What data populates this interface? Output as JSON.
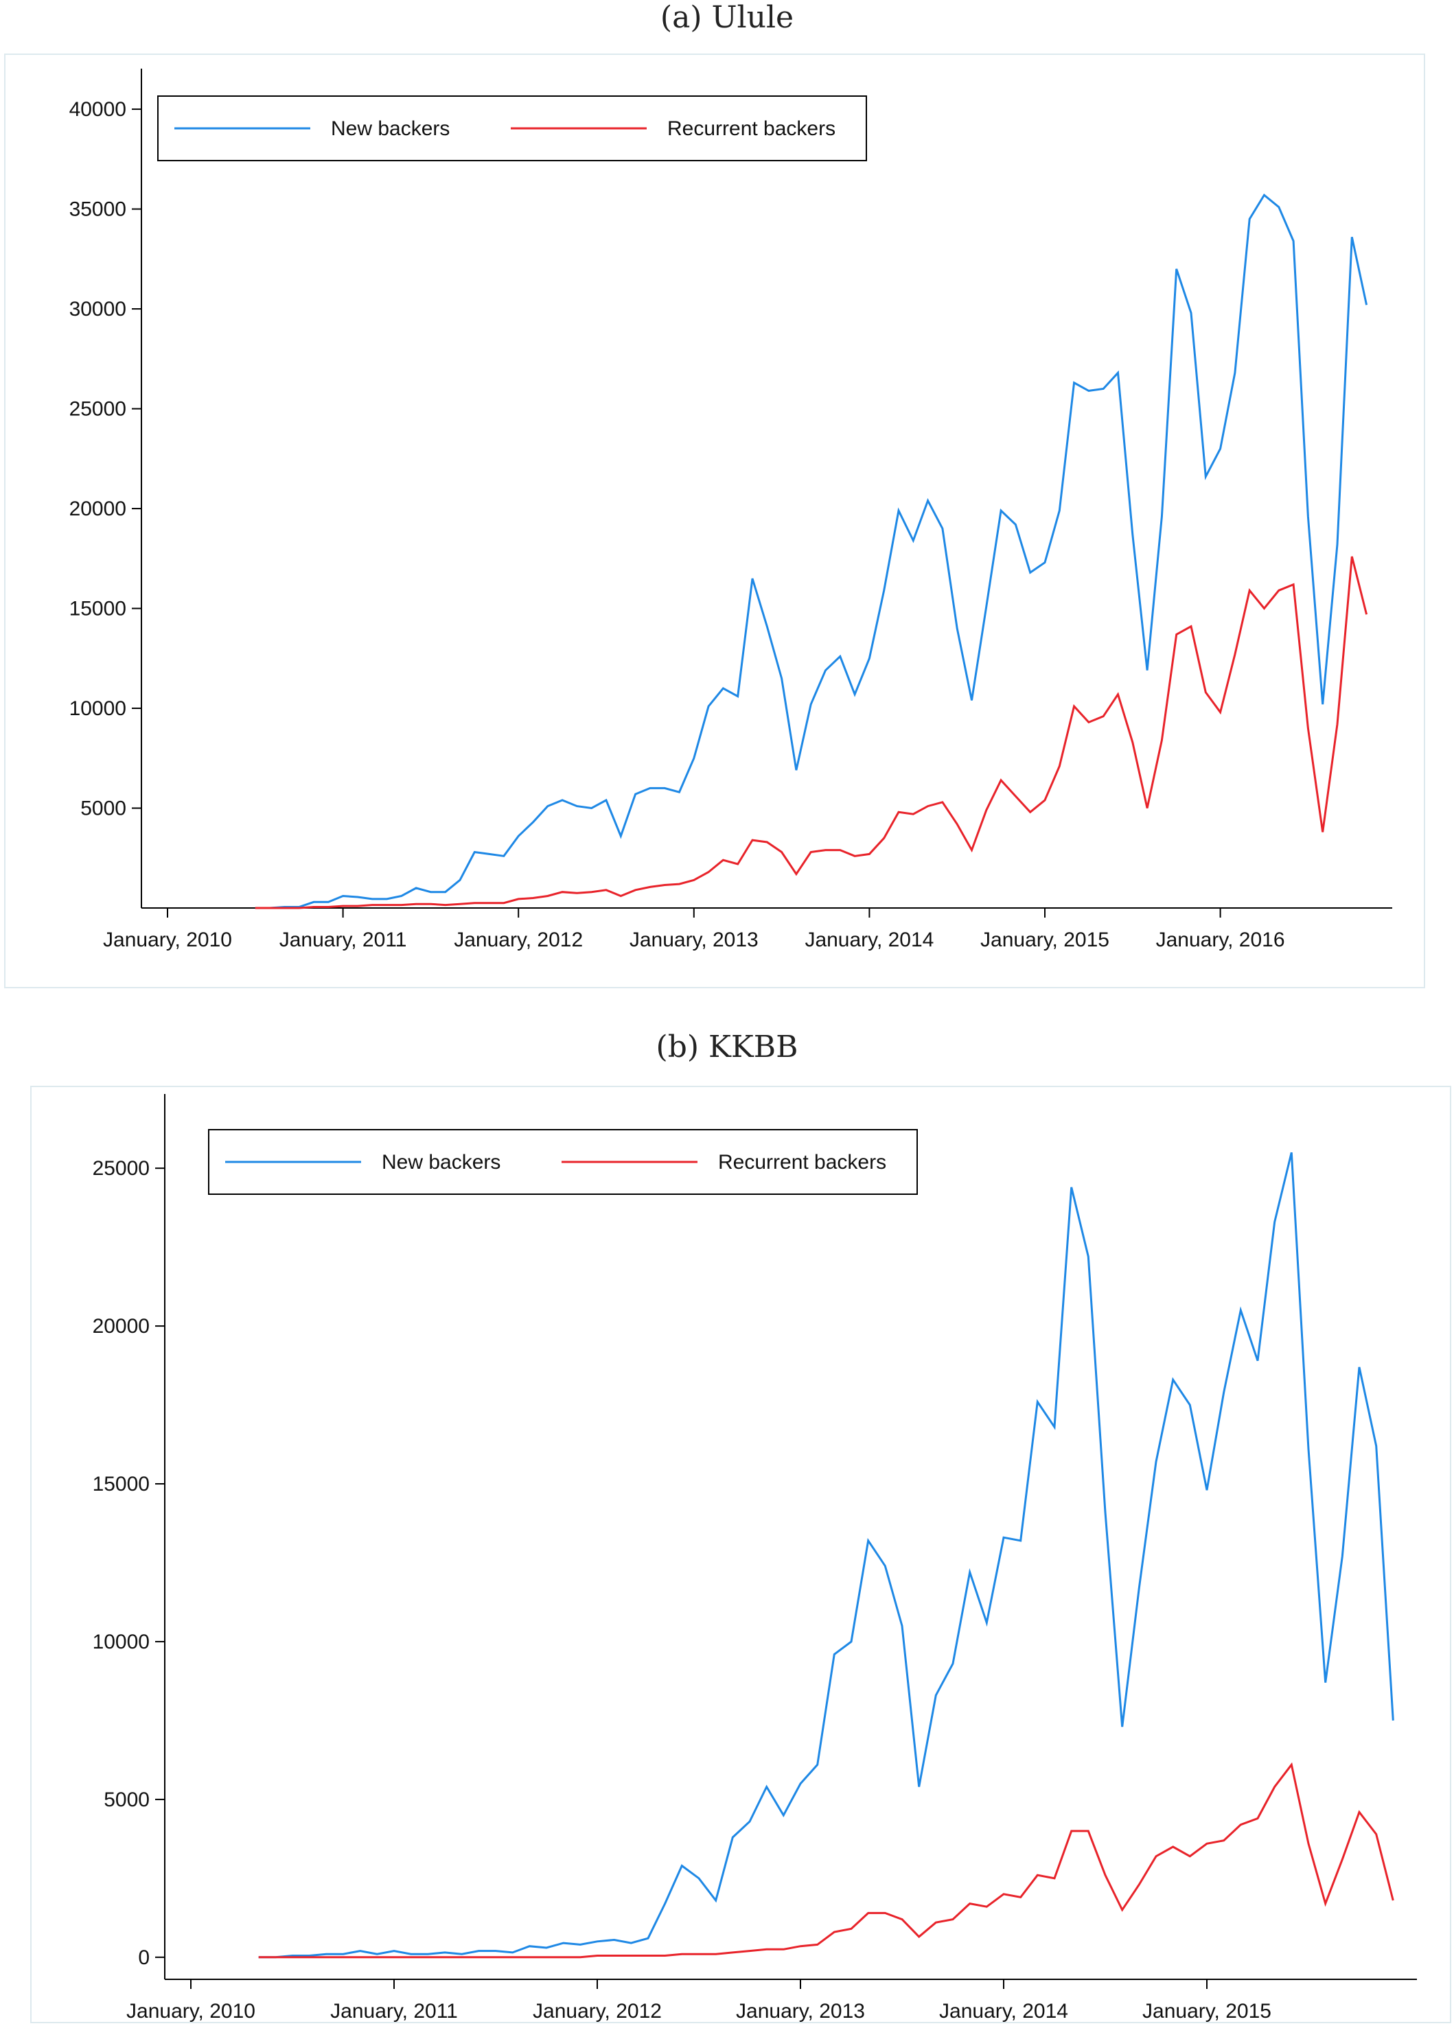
{
  "panels": [
    {
      "title": "(a) Ulule",
      "chart_data": {
        "type": "line",
        "title": "(a) Ulule",
        "xlabel": "",
        "ylabel": "",
        "x_start": "2010-07",
        "x_ticks": [
          "January, 2010",
          "January, 2011",
          "January, 2012",
          "January, 2013",
          "January, 2014",
          "January, 2015",
          "January, 2016"
        ],
        "y_ticks": [
          5000,
          10000,
          15000,
          20000,
          25000,
          30000,
          35000,
          40000
        ],
        "ylim": [
          0,
          41000
        ],
        "grid": false,
        "legend_position": "top-left",
        "series": [
          {
            "name": "New backers",
            "color": "#1e88e5",
            "values": [
              0,
              0,
              50,
              50,
              300,
              300,
              600,
              550,
              450,
              450,
              600,
              1000,
              800,
              800,
              1400,
              2800,
              2700,
              2600,
              3600,
              4300,
              5100,
              5400,
              5100,
              5000,
              5400,
              3600,
              5700,
              6000,
              6000,
              5800,
              7500,
              10100,
              11000,
              10600,
              16500,
              14100,
              11500,
              6900,
              10200,
              11900,
              12600,
              10700,
              12500,
              15900,
              19900,
              18400,
              20400,
              19000,
              14000,
              10400,
              15100,
              19900,
              19200,
              16800,
              17300,
              19900,
              26300,
              25900,
              26000,
              26800,
              18700,
              11900,
              19600,
              32000,
              29800,
              21600,
              23000,
              26800,
              34500,
              35700,
              35100,
              33400,
              19600,
              10200,
              18200,
              33600,
              30200
            ]
          },
          {
            "name": "Recurrent backers",
            "color": "#e8232a",
            "values": [
              0,
              0,
              0,
              0,
              50,
              50,
              100,
              100,
              150,
              150,
              150,
              200,
              200,
              150,
              200,
              250,
              250,
              250,
              450,
              500,
              600,
              800,
              750,
              800,
              900,
              600,
              900,
              1050,
              1150,
              1200,
              1400,
              1800,
              2400,
              2200,
              3400,
              3300,
              2800,
              1700,
              2800,
              2900,
              2900,
              2600,
              2700,
              3500,
              4800,
              4700,
              5100,
              5300,
              4200,
              2900,
              4900,
              6400,
              5600,
              4800,
              5400,
              7100,
              10100,
              9300,
              9600,
              10700,
              8300,
              5000,
              8400,
              13700,
              14100,
              10800,
              9800,
              12700,
              15900,
              15000,
              15900,
              16200,
              9000,
              3800,
              9200,
              17600,
              14700
            ]
          }
        ]
      }
    },
    {
      "title": "(b) KKBB",
      "chart_data": {
        "type": "line",
        "title": "(b) KKBB",
        "xlabel": "",
        "ylabel": "",
        "x_start": "2010-05",
        "x_ticks": [
          "January, 2010",
          "January, 2011",
          "January, 2012",
          "January, 2013",
          "January, 2014",
          "January, 2015"
        ],
        "y_ticks": [
          0,
          5000,
          10000,
          15000,
          20000,
          25000
        ],
        "ylim": [
          -700,
          26700
        ],
        "grid": false,
        "legend_position": "top-left",
        "series": [
          {
            "name": "New backers",
            "color": "#1e88e5",
            "values": [
              0,
              0,
              50,
              50,
              100,
              100,
              200,
              100,
              200,
              100,
              100,
              150,
              100,
              200,
              200,
              150,
              350,
              300,
              450,
              400,
              500,
              550,
              450,
              600,
              1700,
              2900,
              2500,
              1800,
              3800,
              4300,
              5400,
              4500,
              5500,
              6100,
              9600,
              10000,
              13200,
              12400,
              10500,
              5400,
              8300,
              9300,
              12200,
              10600,
              13300,
              13200,
              17600,
              16800,
              24400,
              22200,
              14100,
              7300,
              11700,
              15700,
              18300,
              17500,
              14800,
              17900,
              20500,
              18900,
              23300,
              25500,
              16100,
              8700,
              12700,
              18700,
              16200,
              7500
            ]
          },
          {
            "name": "Recurrent backers",
            "color": "#e8232a",
            "values": [
              0,
              0,
              0,
              0,
              0,
              0,
              0,
              0,
              0,
              0,
              0,
              0,
              0,
              0,
              0,
              0,
              0,
              0,
              0,
              0,
              50,
              50,
              50,
              50,
              50,
              100,
              100,
              100,
              150,
              200,
              250,
              250,
              350,
              400,
              800,
              900,
              1400,
              1400,
              1200,
              650,
              1100,
              1200,
              1700,
              1600,
              2000,
              1900,
              2600,
              2500,
              4000,
              4000,
              2600,
              1500,
              2300,
              3200,
              3500,
              3200,
              3600,
              3700,
              4200,
              4400,
              5400,
              6100,
              3600,
              1700,
              3100,
              4600,
              3900,
              1800
            ]
          }
        ]
      }
    }
  ]
}
